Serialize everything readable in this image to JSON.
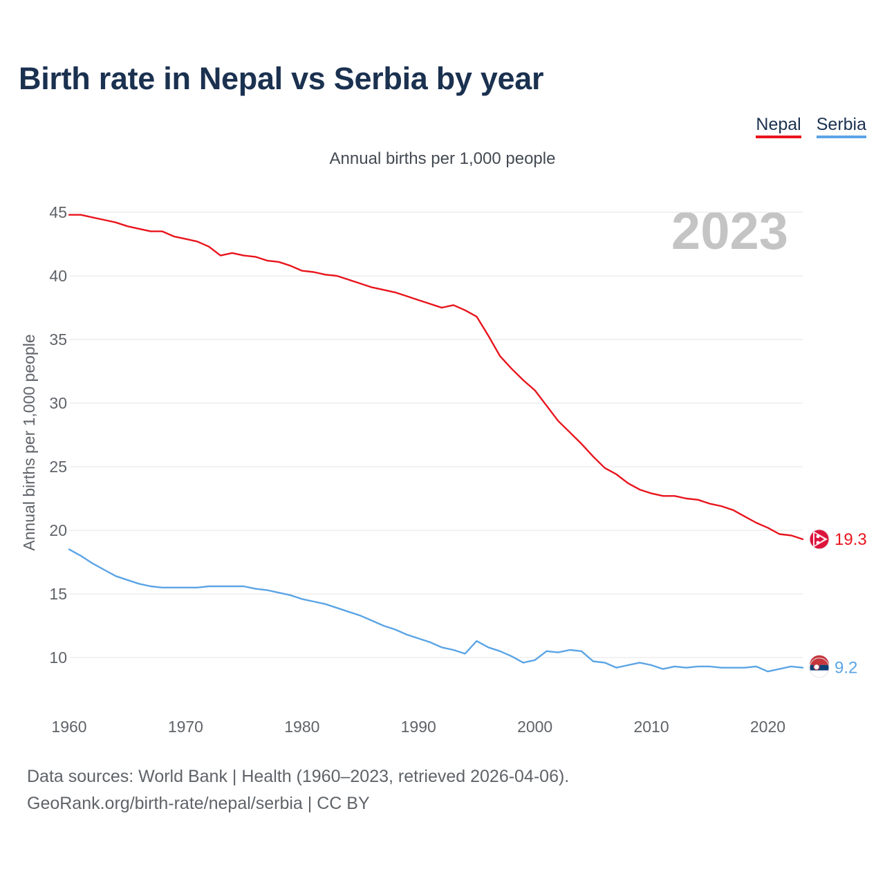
{
  "title": "Birth rate in Nepal vs Serbia by year",
  "subtitle": "Annual births per 1,000 people",
  "year_watermark": "2023",
  "legend": [
    {
      "name": "Nepal",
      "color": "#e8141c"
    },
    {
      "name": "Serbia",
      "color": "#5ba4e5"
    }
  ],
  "footer": {
    "line1": "Data sources: World Bank | Health (1960–2023, retrieved 2026-04-06).",
    "line2": "GeoRank.org/birth-rate/nepal/serbia | CC BY"
  },
  "chart_data": {
    "type": "line",
    "title": "Birth rate in Nepal vs Serbia by year",
    "xlabel": "",
    "ylabel": "Annual births per 1,000 people",
    "xlim": [
      1960,
      2023
    ],
    "ylim": [
      7,
      45
    ],
    "yticks": [
      10,
      15,
      20,
      25,
      30,
      35,
      40,
      45
    ],
    "xticks": [
      1960,
      1970,
      1980,
      1990,
      2000,
      2010,
      2020
    ],
    "grid": true,
    "legend_position": "top-right",
    "x": [
      1960,
      1961,
      1962,
      1963,
      1964,
      1965,
      1966,
      1967,
      1968,
      1969,
      1970,
      1971,
      1972,
      1973,
      1974,
      1975,
      1976,
      1977,
      1978,
      1979,
      1980,
      1981,
      1982,
      1983,
      1984,
      1985,
      1986,
      1987,
      1988,
      1989,
      1990,
      1991,
      1992,
      1993,
      1994,
      1995,
      1996,
      1997,
      1998,
      1999,
      2000,
      2001,
      2002,
      2003,
      2004,
      2005,
      2006,
      2007,
      2008,
      2009,
      2010,
      2011,
      2012,
      2013,
      2014,
      2015,
      2016,
      2017,
      2018,
      2019,
      2020,
      2021,
      2022,
      2023
    ],
    "series": [
      {
        "name": "Nepal",
        "color": "#e8141c",
        "end_label": "19.3",
        "values": [
          44.8,
          44.8,
          44.6,
          44.4,
          44.2,
          43.9,
          43.7,
          43.5,
          43.5,
          43.1,
          42.9,
          42.7,
          42.3,
          41.6,
          41.8,
          41.6,
          41.5,
          41.2,
          41.1,
          40.8,
          40.4,
          40.3,
          40.1,
          40.0,
          39.7,
          39.4,
          39.1,
          38.9,
          38.7,
          38.4,
          38.1,
          37.8,
          37.5,
          37.7,
          37.3,
          36.8,
          35.3,
          33.7,
          32.7,
          31.8,
          31.0,
          29.8,
          28.6,
          27.7,
          26.8,
          25.8,
          24.9,
          24.4,
          23.7,
          23.2,
          22.9,
          22.7,
          22.7,
          22.5,
          22.4,
          22.1,
          21.9,
          21.6,
          21.1,
          20.6,
          20.2,
          19.7,
          19.6,
          19.3
        ]
      },
      {
        "name": "Serbia",
        "color": "#5ba4e5",
        "end_label": "9.2",
        "values": [
          18.5,
          18.0,
          17.4,
          16.9,
          16.4,
          16.1,
          15.8,
          15.6,
          15.5,
          15.5,
          15.5,
          15.5,
          15.6,
          15.6,
          15.6,
          15.6,
          15.4,
          15.3,
          15.1,
          14.9,
          14.6,
          14.4,
          14.2,
          13.9,
          13.6,
          13.3,
          12.9,
          12.5,
          12.2,
          11.8,
          11.5,
          11.2,
          10.8,
          10.6,
          10.3,
          11.3,
          10.8,
          10.5,
          10.1,
          9.6,
          9.8,
          10.5,
          10.4,
          10.6,
          10.5,
          9.7,
          9.6,
          9.2,
          9.4,
          9.6,
          9.4,
          9.1,
          9.3,
          9.2,
          9.3,
          9.3,
          9.2,
          9.2,
          9.2,
          9.3,
          8.9,
          9.1,
          9.3,
          9.2
        ]
      }
    ]
  }
}
